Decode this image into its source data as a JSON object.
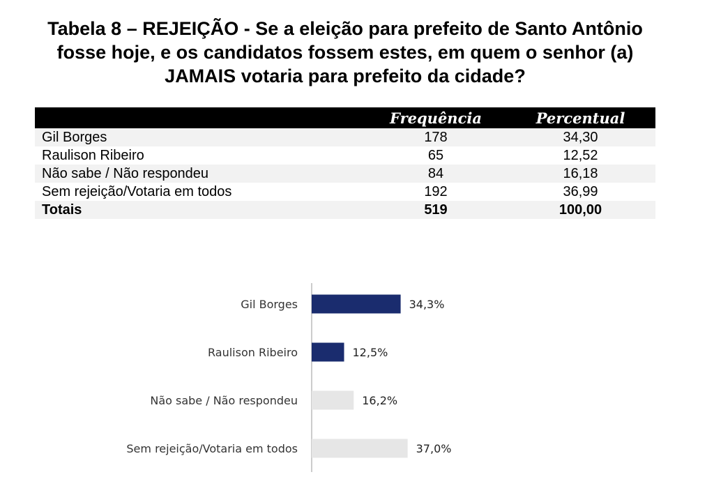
{
  "title": "Tabela 8 – REJEIÇÃO - Se a eleição para prefeito de Santo Antônio fosse hoje, e os candidatos fossem estes, em quem o senhor (a) JAMAIS votaria para prefeito da cidade?",
  "table": {
    "headers": [
      "",
      "Frequência",
      "Percentual"
    ],
    "rows": [
      {
        "label": "Gil Borges",
        "freq": "178",
        "pct": "34,30"
      },
      {
        "label": "Raulison Ribeiro",
        "freq": "65",
        "pct": "12,52"
      },
      {
        "label": "Não sabe / Não respondeu",
        "freq": "84",
        "pct": "16,18"
      },
      {
        "label": "Sem rejeição/Votaria em todos",
        "freq": "192",
        "pct": "36,99"
      }
    ],
    "total": {
      "label": "Totais",
      "freq": "519",
      "pct": "100,00"
    }
  },
  "chart_data": {
    "type": "bar",
    "orientation": "horizontal",
    "categories": [
      "Gil Borges",
      "Raulison Ribeiro",
      "Não sabe / Não respondeu",
      "Sem rejeição/Votaria em todos"
    ],
    "values": [
      34.3,
      12.5,
      16.2,
      37.0
    ],
    "value_labels": [
      "34,3%",
      "12,5%",
      "16,2%",
      "37,0%"
    ],
    "colors": [
      "#1a2c6e",
      "#1a2c6e",
      "#e6e6e6",
      "#e6e6e6"
    ],
    "xlim": [
      0,
      40
    ],
    "grid": false,
    "legend": "none"
  }
}
